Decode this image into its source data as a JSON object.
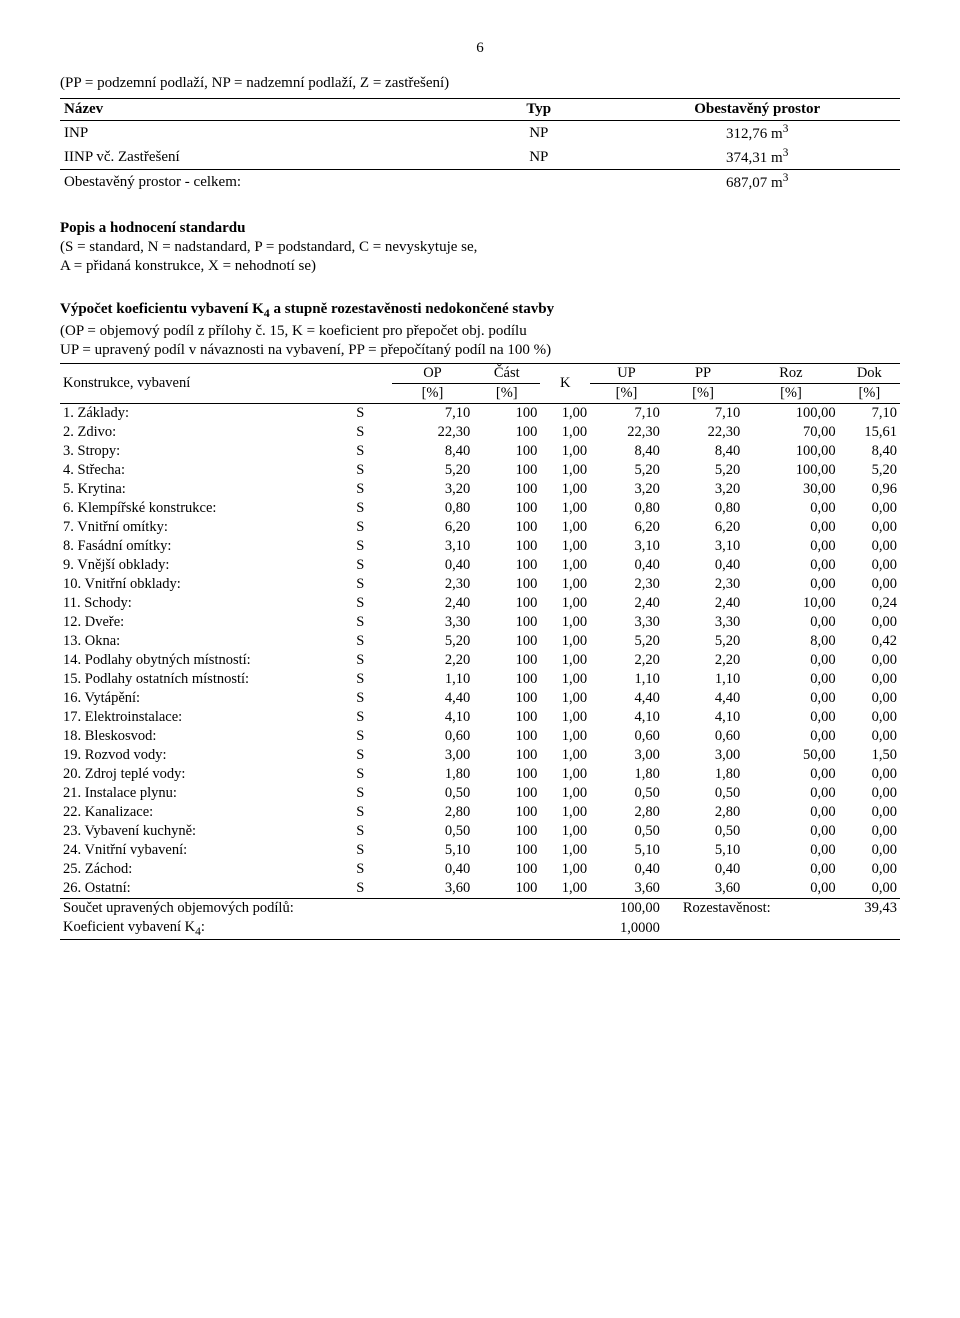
{
  "page_number": "6",
  "intro_line": "(PP = podzemní podlaží, NP = nadzemní podlaží, Z = zastřešení)",
  "top_table": {
    "headers": {
      "name": "Název",
      "typ": "Typ",
      "val": "Obestavěný prostor"
    },
    "rows": [
      {
        "name": "INP",
        "typ": "NP",
        "val": "312,76 m"
      },
      {
        "name": "IINP vč. Zastřešení",
        "typ": "NP",
        "val": "374,31 m"
      }
    ],
    "total": {
      "name": "Obestavěný prostor - celkem:",
      "val": "687,07 m"
    },
    "sup": "3"
  },
  "section1": {
    "title": "Popis a hodnocení standardu",
    "note1": "(S = standard, N = nadstandard, P = podstandard, C = nevyskytuje se,",
    "note2": "A = přidaná konstrukce, X = nehodnotí se)"
  },
  "section2": {
    "title_prefix": "Výpočet koeficientu vybavení K",
    "title_sub": "4",
    "title_suffix": " a stupně rozestavěnosti nedokončené stavby",
    "note1": "(OP = objemový podíl z přílohy č. 15, K = koeficient pro přepočet obj. podílu",
    "note2": "UP = upravený podíl v návaznosti na vybavení, PP = přepočítaný podíl na 100 %)"
  },
  "main_table": {
    "headers": {
      "name": "Konstrukce, vybavení",
      "op": {
        "t": "OP",
        "b": "[%]"
      },
      "cast": {
        "t": "Část",
        "b": "[%]"
      },
      "k": "K",
      "up": {
        "t": "UP",
        "b": "[%]"
      },
      "pp": {
        "t": "PP",
        "b": "[%]"
      },
      "roz": {
        "t": "Roz",
        "b": "[%]"
      },
      "dok": {
        "t": "Dok",
        "b": "[%]"
      }
    },
    "rows": [
      {
        "n": "1. Základy:",
        "s": "S",
        "op": "7,10",
        "c": "100",
        "k": "1,00",
        "up": "7,10",
        "pp": "7,10",
        "r": "100,00",
        "d": "7,10"
      },
      {
        "n": "2. Zdivo:",
        "s": "S",
        "op": "22,30",
        "c": "100",
        "k": "1,00",
        "up": "22,30",
        "pp": "22,30",
        "r": "70,00",
        "d": "15,61"
      },
      {
        "n": "3. Stropy:",
        "s": "S",
        "op": "8,40",
        "c": "100",
        "k": "1,00",
        "up": "8,40",
        "pp": "8,40",
        "r": "100,00",
        "d": "8,40"
      },
      {
        "n": "4. Střecha:",
        "s": "S",
        "op": "5,20",
        "c": "100",
        "k": "1,00",
        "up": "5,20",
        "pp": "5,20",
        "r": "100,00",
        "d": "5,20"
      },
      {
        "n": "5. Krytina:",
        "s": "S",
        "op": "3,20",
        "c": "100",
        "k": "1,00",
        "up": "3,20",
        "pp": "3,20",
        "r": "30,00",
        "d": "0,96"
      },
      {
        "n": "6. Klempířské konstrukce:",
        "s": "S",
        "op": "0,80",
        "c": "100",
        "k": "1,00",
        "up": "0,80",
        "pp": "0,80",
        "r": "0,00",
        "d": "0,00"
      },
      {
        "n": "7. Vnitřní omítky:",
        "s": "S",
        "op": "6,20",
        "c": "100",
        "k": "1,00",
        "up": "6,20",
        "pp": "6,20",
        "r": "0,00",
        "d": "0,00"
      },
      {
        "n": "8. Fasádní omítky:",
        "s": "S",
        "op": "3,10",
        "c": "100",
        "k": "1,00",
        "up": "3,10",
        "pp": "3,10",
        "r": "0,00",
        "d": "0,00"
      },
      {
        "n": "9. Vnější obklady:",
        "s": "S",
        "op": "0,40",
        "c": "100",
        "k": "1,00",
        "up": "0,40",
        "pp": "0,40",
        "r": "0,00",
        "d": "0,00"
      },
      {
        "n": "10. Vnitřní obklady:",
        "s": "S",
        "op": "2,30",
        "c": "100",
        "k": "1,00",
        "up": "2,30",
        "pp": "2,30",
        "r": "0,00",
        "d": "0,00"
      },
      {
        "n": "11. Schody:",
        "s": "S",
        "op": "2,40",
        "c": "100",
        "k": "1,00",
        "up": "2,40",
        "pp": "2,40",
        "r": "10,00",
        "d": "0,24"
      },
      {
        "n": "12. Dveře:",
        "s": "S",
        "op": "3,30",
        "c": "100",
        "k": "1,00",
        "up": "3,30",
        "pp": "3,30",
        "r": "0,00",
        "d": "0,00"
      },
      {
        "n": "13. Okna:",
        "s": "S",
        "op": "5,20",
        "c": "100",
        "k": "1,00",
        "up": "5,20",
        "pp": "5,20",
        "r": "8,00",
        "d": "0,42"
      },
      {
        "n": "14. Podlahy obytných místností:",
        "s": "S",
        "op": "2,20",
        "c": "100",
        "k": "1,00",
        "up": "2,20",
        "pp": "2,20",
        "r": "0,00",
        "d": "0,00"
      },
      {
        "n": "15. Podlahy ostatních místností:",
        "s": "S",
        "op": "1,10",
        "c": "100",
        "k": "1,00",
        "up": "1,10",
        "pp": "1,10",
        "r": "0,00",
        "d": "0,00"
      },
      {
        "n": "16. Vytápění:",
        "s": "S",
        "op": "4,40",
        "c": "100",
        "k": "1,00",
        "up": "4,40",
        "pp": "4,40",
        "r": "0,00",
        "d": "0,00"
      },
      {
        "n": "17. Elektroinstalace:",
        "s": "S",
        "op": "4,10",
        "c": "100",
        "k": "1,00",
        "up": "4,10",
        "pp": "4,10",
        "r": "0,00",
        "d": "0,00"
      },
      {
        "n": "18. Bleskosvod:",
        "s": "S",
        "op": "0,60",
        "c": "100",
        "k": "1,00",
        "up": "0,60",
        "pp": "0,60",
        "r": "0,00",
        "d": "0,00"
      },
      {
        "n": "19. Rozvod vody:",
        "s": "S",
        "op": "3,00",
        "c": "100",
        "k": "1,00",
        "up": "3,00",
        "pp": "3,00",
        "r": "50,00",
        "d": "1,50"
      },
      {
        "n": "20. Zdroj teplé vody:",
        "s": "S",
        "op": "1,80",
        "c": "100",
        "k": "1,00",
        "up": "1,80",
        "pp": "1,80",
        "r": "0,00",
        "d": "0,00"
      },
      {
        "n": "21. Instalace plynu:",
        "s": "S",
        "op": "0,50",
        "c": "100",
        "k": "1,00",
        "up": "0,50",
        "pp": "0,50",
        "r": "0,00",
        "d": "0,00"
      },
      {
        "n": "22. Kanalizace:",
        "s": "S",
        "op": "2,80",
        "c": "100",
        "k": "1,00",
        "up": "2,80",
        "pp": "2,80",
        "r": "0,00",
        "d": "0,00"
      },
      {
        "n": "23. Vybavení kuchyně:",
        "s": "S",
        "op": "0,50",
        "c": "100",
        "k": "1,00",
        "up": "0,50",
        "pp": "0,50",
        "r": "0,00",
        "d": "0,00"
      },
      {
        "n": "24. Vnitřní vybavení:",
        "s": "S",
        "op": "5,10",
        "c": "100",
        "k": "1,00",
        "up": "5,10",
        "pp": "5,10",
        "r": "0,00",
        "d": "0,00"
      },
      {
        "n": "25. Záchod:",
        "s": "S",
        "op": "0,40",
        "c": "100",
        "k": "1,00",
        "up": "0,40",
        "pp": "0,40",
        "r": "0,00",
        "d": "0,00"
      },
      {
        "n": "26. Ostatní:",
        "s": "S",
        "op": "3,60",
        "c": "100",
        "k": "1,00",
        "up": "3,60",
        "pp": "3,60",
        "r": "0,00",
        "d": "0,00"
      }
    ],
    "totals": {
      "sum_label": "Součet upravených objemových podílů:",
      "sum_val": "100,00",
      "roz_label": "Rozestavěnost:",
      "roz_val": "39,43",
      "k4_label_prefix": "Koeficient vybavení K",
      "k4_label_sub": "4",
      "k4_label_suffix": ":",
      "k4_val": "1,0000"
    }
  }
}
